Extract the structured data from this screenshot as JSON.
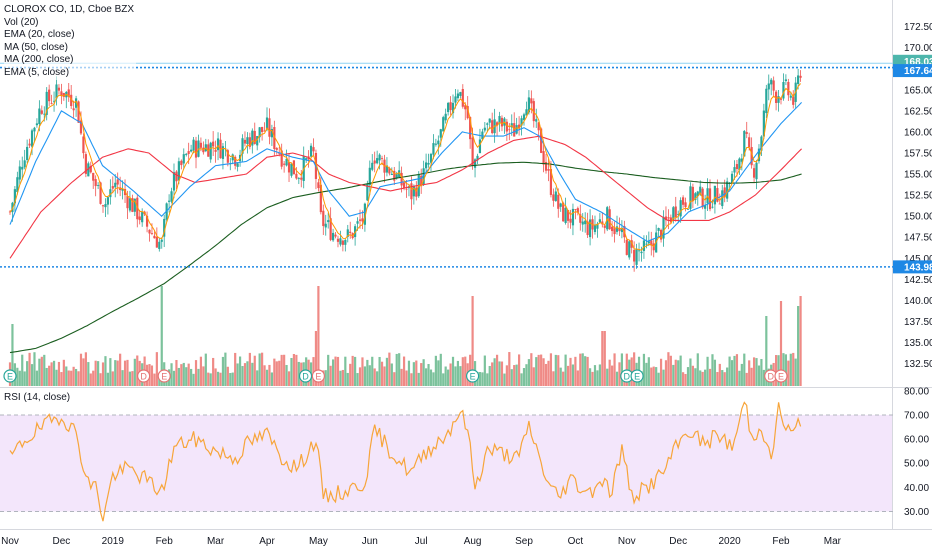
{
  "legend": {
    "title": "CLOROX CO, 1D, Cboe BZX",
    "vol": "Vol (20)",
    "ema20": "EMA (20, close)",
    "ma50": "MA (50, close)",
    "ma200": "MA (200, close)",
    "ema5": "EMA (5, close)",
    "rsi": "RSI (14, close)"
  },
  "colors": {
    "up": "#26a69a",
    "down": "#ef5350",
    "vol_up": "#7cc29c",
    "vol_down": "#ef8a86",
    "ema20": "#2196f3",
    "ma50": "#f23645",
    "ma200": "#1b5e20",
    "ema5": "#ff9800",
    "rsi_line": "#f7a53a",
    "rsi_band": "#f3e6fb",
    "levels": "#1e88e5",
    "dividend_marker": "#e57373",
    "earnings_marker": "#26a69a"
  },
  "chart_data": [
    {
      "type": "candlestick",
      "title": "CLOROX CO, 1D, Cboe BZX",
      "y_ticks": [
        "172.50",
        "170.00",
        "167.50",
        "165.00",
        "162.50",
        "160.00",
        "157.50",
        "155.00",
        "152.50",
        "150.00",
        "147.50",
        "145.00",
        "142.50",
        "140.00",
        "137.50",
        "135.00",
        "132.50"
      ],
      "x_ticks": [
        "Nov",
        "Dec",
        "2019",
        "Feb",
        "Mar",
        "Apr",
        "May",
        "Jun",
        "Jul",
        "Aug",
        "Sep",
        "Oct",
        "Nov",
        "Dec",
        "2020",
        "Feb",
        "Mar"
      ],
      "ylim": [
        131.5,
        174.0
      ],
      "price_labels": {
        "last": "168.03",
        "resistance": "167.64",
        "support": "143.98"
      },
      "levels": {
        "resistance": 167.64,
        "support": 143.98,
        "last": 168.03
      },
      "anchors": [
        {
          "m": 0.0,
          "p": 150.5
        },
        {
          "m": 0.25,
          "p": 157.0
        },
        {
          "m": 0.6,
          "p": 163.0
        },
        {
          "m": 1.0,
          "p": 165.0
        },
        {
          "m": 1.3,
          "p": 163.5
        },
        {
          "m": 1.45,
          "p": 156.5
        },
        {
          "m": 1.6,
          "p": 154.5
        },
        {
          "m": 1.85,
          "p": 151.5
        },
        {
          "m": 2.05,
          "p": 154.0
        },
        {
          "m": 2.3,
          "p": 152.0
        },
        {
          "m": 2.7,
          "p": 148.5
        },
        {
          "m": 2.95,
          "p": 146.5
        },
        {
          "m": 3.1,
          "p": 153.0
        },
        {
          "m": 3.5,
          "p": 158.0
        },
        {
          "m": 4.0,
          "p": 158.5
        },
        {
          "m": 4.4,
          "p": 157.0
        },
        {
          "m": 4.6,
          "p": 159.0
        },
        {
          "m": 5.0,
          "p": 160.5
        },
        {
          "m": 5.3,
          "p": 157.0
        },
        {
          "m": 5.6,
          "p": 155.0
        },
        {
          "m": 5.9,
          "p": 157.5
        },
        {
          "m": 6.05,
          "p": 149.5
        },
        {
          "m": 6.3,
          "p": 148.0
        },
        {
          "m": 6.6,
          "p": 147.5
        },
        {
          "m": 6.9,
          "p": 150.0
        },
        {
          "m": 7.05,
          "p": 157.5
        },
        {
          "m": 7.4,
          "p": 155.5
        },
        {
          "m": 7.8,
          "p": 152.5
        },
        {
          "m": 8.1,
          "p": 155.5
        },
        {
          "m": 8.4,
          "p": 160.0
        },
        {
          "m": 8.7,
          "p": 165.5
        },
        {
          "m": 8.9,
          "p": 162.0
        },
        {
          "m": 9.0,
          "p": 155.5
        },
        {
          "m": 9.2,
          "p": 160.5
        },
        {
          "m": 9.5,
          "p": 161.0
        },
        {
          "m": 9.8,
          "p": 160.0
        },
        {
          "m": 10.05,
          "p": 164.0
        },
        {
          "m": 10.3,
          "p": 159.0
        },
        {
          "m": 10.5,
          "p": 154.0
        },
        {
          "m": 10.7,
          "p": 150.5
        },
        {
          "m": 11.0,
          "p": 149.5
        },
        {
          "m": 11.3,
          "p": 148.5
        },
        {
          "m": 11.6,
          "p": 150.0
        },
        {
          "m": 11.9,
          "p": 147.5
        },
        {
          "m": 12.1,
          "p": 145.5
        },
        {
          "m": 12.4,
          "p": 146.0
        },
        {
          "m": 12.7,
          "p": 148.5
        },
        {
          "m": 13.0,
          "p": 151.5
        },
        {
          "m": 13.3,
          "p": 152.5
        },
        {
          "m": 13.6,
          "p": 152.0
        },
        {
          "m": 13.9,
          "p": 153.0
        },
        {
          "m": 14.1,
          "p": 155.0
        },
        {
          "m": 14.3,
          "p": 159.5
        },
        {
          "m": 14.45,
          "p": 155.0
        },
        {
          "m": 14.6,
          "p": 159.0
        },
        {
          "m": 14.75,
          "p": 166.0
        },
        {
          "m": 14.9,
          "p": 164.5
        },
        {
          "m": 15.1,
          "p": 165.0
        },
        {
          "m": 15.25,
          "p": 163.5
        },
        {
          "m": 15.4,
          "p": 168.0
        }
      ],
      "ema20": [
        {
          "m": 0.0,
          "p": 149.0
        },
        {
          "m": 0.5,
          "p": 156.5
        },
        {
          "m": 1.0,
          "p": 162.5
        },
        {
          "m": 1.4,
          "p": 161.0
        },
        {
          "m": 1.8,
          "p": 156.0
        },
        {
          "m": 2.4,
          "p": 153.0
        },
        {
          "m": 2.95,
          "p": 150.0
        },
        {
          "m": 3.5,
          "p": 153.5
        },
        {
          "m": 4.0,
          "p": 156.0
        },
        {
          "m": 4.6,
          "p": 156.5
        },
        {
          "m": 5.0,
          "p": 158.0
        },
        {
          "m": 5.5,
          "p": 157.0
        },
        {
          "m": 5.9,
          "p": 156.5
        },
        {
          "m": 6.2,
          "p": 153.0
        },
        {
          "m": 6.6,
          "p": 150.0
        },
        {
          "m": 6.9,
          "p": 150.5
        },
        {
          "m": 7.2,
          "p": 153.5
        },
        {
          "m": 7.6,
          "p": 154.0
        },
        {
          "m": 8.0,
          "p": 154.5
        },
        {
          "m": 8.4,
          "p": 157.5
        },
        {
          "m": 8.8,
          "p": 160.0
        },
        {
          "m": 9.2,
          "p": 159.5
        },
        {
          "m": 9.6,
          "p": 159.5
        },
        {
          "m": 10.0,
          "p": 160.5
        },
        {
          "m": 10.3,
          "p": 159.5
        },
        {
          "m": 10.7,
          "p": 155.0
        },
        {
          "m": 11.0,
          "p": 152.0
        },
        {
          "m": 11.5,
          "p": 150.5
        },
        {
          "m": 12.0,
          "p": 148.5
        },
        {
          "m": 12.4,
          "p": 147.0
        },
        {
          "m": 12.8,
          "p": 148.0
        },
        {
          "m": 13.2,
          "p": 150.5
        },
        {
          "m": 13.6,
          "p": 151.5
        },
        {
          "m": 14.0,
          "p": 153.0
        },
        {
          "m": 14.3,
          "p": 155.5
        },
        {
          "m": 14.6,
          "p": 158.0
        },
        {
          "m": 15.0,
          "p": 161.0
        },
        {
          "m": 15.4,
          "p": 163.5
        }
      ],
      "ma50": [
        {
          "m": 0.0,
          "p": 145.0
        },
        {
          "m": 0.6,
          "p": 150.5
        },
        {
          "m": 1.2,
          "p": 154.0
        },
        {
          "m": 1.8,
          "p": 157.0
        },
        {
          "m": 2.3,
          "p": 158.0
        },
        {
          "m": 2.7,
          "p": 157.5
        },
        {
          "m": 3.2,
          "p": 155.0
        },
        {
          "m": 3.6,
          "p": 154.0
        },
        {
          "m": 4.1,
          "p": 154.5
        },
        {
          "m": 4.6,
          "p": 155.0
        },
        {
          "m": 5.0,
          "p": 157.0
        },
        {
          "m": 5.5,
          "p": 157.5
        },
        {
          "m": 5.8,
          "p": 157.0
        },
        {
          "m": 6.2,
          "p": 155.0
        },
        {
          "m": 6.6,
          "p": 154.0
        },
        {
          "m": 7.0,
          "p": 153.5
        },
        {
          "m": 7.4,
          "p": 153.0
        },
        {
          "m": 7.8,
          "p": 153.5
        },
        {
          "m": 8.3,
          "p": 154.0
        },
        {
          "m": 8.8,
          "p": 155.5
        },
        {
          "m": 9.3,
          "p": 157.5
        },
        {
          "m": 9.8,
          "p": 159.0
        },
        {
          "m": 10.3,
          "p": 159.5
        },
        {
          "m": 10.8,
          "p": 158.5
        },
        {
          "m": 11.2,
          "p": 157.0
        },
        {
          "m": 11.6,
          "p": 155.0
        },
        {
          "m": 12.0,
          "p": 153.0
        },
        {
          "m": 12.4,
          "p": 151.0
        },
        {
          "m": 12.8,
          "p": 149.5
        },
        {
          "m": 13.2,
          "p": 149.5
        },
        {
          "m": 13.6,
          "p": 149.5
        },
        {
          "m": 14.0,
          "p": 150.5
        },
        {
          "m": 14.5,
          "p": 152.5
        },
        {
          "m": 15.0,
          "p": 155.5
        },
        {
          "m": 15.4,
          "p": 158.0
        }
      ],
      "ma200": [
        {
          "m": 0.0,
          "p": 133.8
        },
        {
          "m": 0.5,
          "p": 134.3
        },
        {
          "m": 1.0,
          "p": 135.5
        },
        {
          "m": 1.5,
          "p": 137.0
        },
        {
          "m": 2.0,
          "p": 138.7
        },
        {
          "m": 2.5,
          "p": 140.3
        },
        {
          "m": 3.0,
          "p": 142.0
        },
        {
          "m": 3.5,
          "p": 144.2
        },
        {
          "m": 4.0,
          "p": 146.5
        },
        {
          "m": 4.5,
          "p": 149.0
        },
        {
          "m": 5.0,
          "p": 151.0
        },
        {
          "m": 5.5,
          "p": 152.2
        },
        {
          "m": 6.0,
          "p": 152.8
        },
        {
          "m": 6.5,
          "p": 153.3
        },
        {
          "m": 7.0,
          "p": 153.9
        },
        {
          "m": 7.5,
          "p": 154.5
        },
        {
          "m": 8.0,
          "p": 155.0
        },
        {
          "m": 8.5,
          "p": 155.6
        },
        {
          "m": 9.0,
          "p": 156.0
        },
        {
          "m": 9.5,
          "p": 156.3
        },
        {
          "m": 10.0,
          "p": 156.4
        },
        {
          "m": 10.5,
          "p": 156.2
        },
        {
          "m": 11.0,
          "p": 155.7
        },
        {
          "m": 11.5,
          "p": 155.3
        },
        {
          "m": 12.0,
          "p": 155.0
        },
        {
          "m": 12.5,
          "p": 154.6
        },
        {
          "m": 13.0,
          "p": 154.3
        },
        {
          "m": 13.5,
          "p": 154.0
        },
        {
          "m": 14.0,
          "p": 153.9
        },
        {
          "m": 14.5,
          "p": 154.0
        },
        {
          "m": 15.0,
          "p": 154.3
        },
        {
          "m": 15.4,
          "p": 155.0
        }
      ],
      "volume_spikes": [
        {
          "m": 2.95,
          "v": 1.0
        },
        {
          "m": 6.0,
          "v": 1.0
        },
        {
          "m": 5.95,
          "v": 0.55
        },
        {
          "m": 9.0,
          "v": 0.9
        },
        {
          "m": 11.55,
          "v": 0.55
        },
        {
          "m": 15.0,
          "v": 0.85
        },
        {
          "m": 14.7,
          "v": 0.7
        },
        {
          "m": 15.35,
          "v": 0.8
        },
        {
          "m": 15.4,
          "v": 0.9
        },
        {
          "m": 0.05,
          "v": 0.62
        }
      ]
    },
    {
      "type": "line",
      "title": "RSI (14, close)",
      "y_ticks": [
        "80.00",
        "70.00",
        "60.00",
        "50.00",
        "40.00",
        "30.00"
      ],
      "ylim": [
        24.0,
        82.0
      ],
      "band": [
        30,
        70
      ],
      "anchors": [
        {
          "m": 0.0,
          "v": 52
        },
        {
          "m": 0.3,
          "v": 60
        },
        {
          "m": 0.7,
          "v": 66
        },
        {
          "m": 1.0,
          "v": 70
        },
        {
          "m": 1.3,
          "v": 62
        },
        {
          "m": 1.5,
          "v": 42
        },
        {
          "m": 1.7,
          "v": 40
        },
        {
          "m": 1.8,
          "v": 26
        },
        {
          "m": 2.0,
          "v": 45
        },
        {
          "m": 2.3,
          "v": 48
        },
        {
          "m": 2.6,
          "v": 44
        },
        {
          "m": 2.95,
          "v": 38
        },
        {
          "m": 3.2,
          "v": 57
        },
        {
          "m": 3.6,
          "v": 60
        },
        {
          "m": 4.0,
          "v": 55
        },
        {
          "m": 4.4,
          "v": 52
        },
        {
          "m": 4.6,
          "v": 58
        },
        {
          "m": 5.0,
          "v": 62
        },
        {
          "m": 5.3,
          "v": 52
        },
        {
          "m": 5.6,
          "v": 48
        },
        {
          "m": 5.95,
          "v": 60
        },
        {
          "m": 6.1,
          "v": 36
        },
        {
          "m": 6.5,
          "v": 38
        },
        {
          "m": 6.9,
          "v": 42
        },
        {
          "m": 7.1,
          "v": 64
        },
        {
          "m": 7.4,
          "v": 55
        },
        {
          "m": 7.8,
          "v": 46
        },
        {
          "m": 8.1,
          "v": 55
        },
        {
          "m": 8.5,
          "v": 62
        },
        {
          "m": 8.75,
          "v": 72
        },
        {
          "m": 8.9,
          "v": 64
        },
        {
          "m": 9.05,
          "v": 40
        },
        {
          "m": 9.3,
          "v": 56
        },
        {
          "m": 9.6,
          "v": 54
        },
        {
          "m": 9.9,
          "v": 52
        },
        {
          "m": 10.1,
          "v": 66
        },
        {
          "m": 10.3,
          "v": 52
        },
        {
          "m": 10.5,
          "v": 40
        },
        {
          "m": 10.7,
          "v": 36
        },
        {
          "m": 10.9,
          "v": 44
        },
        {
          "m": 11.1,
          "v": 40
        },
        {
          "m": 11.3,
          "v": 38
        },
        {
          "m": 11.5,
          "v": 44
        },
        {
          "m": 11.7,
          "v": 38
        },
        {
          "m": 11.9,
          "v": 56
        },
        {
          "m": 12.1,
          "v": 36
        },
        {
          "m": 12.4,
          "v": 40
        },
        {
          "m": 12.7,
          "v": 46
        },
        {
          "m": 12.95,
          "v": 56
        },
        {
          "m": 13.2,
          "v": 64
        },
        {
          "m": 13.5,
          "v": 58
        },
        {
          "m": 13.8,
          "v": 62
        },
        {
          "m": 14.05,
          "v": 56
        },
        {
          "m": 14.3,
          "v": 76
        },
        {
          "m": 14.45,
          "v": 58
        },
        {
          "m": 14.6,
          "v": 68
        },
        {
          "m": 14.8,
          "v": 50
        },
        {
          "m": 14.95,
          "v": 73
        },
        {
          "m": 15.1,
          "v": 64
        },
        {
          "m": 15.25,
          "v": 62
        },
        {
          "m": 15.4,
          "v": 69
        }
      ]
    }
  ]
}
